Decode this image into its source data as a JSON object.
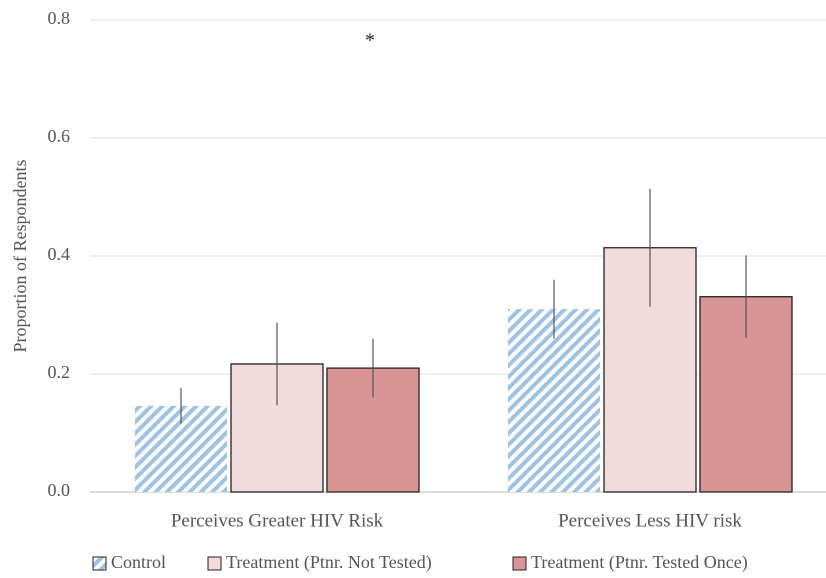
{
  "chart_data": {
    "type": "bar",
    "y_label": "Proportion of Respondents",
    "categories": [
      "Perceives Greater HIV Risk",
      "Perceives Less HIV risk"
    ],
    "series": [
      {
        "name": "Control",
        "color": "#9dc3e6",
        "pattern": "hatch",
        "values": [
          0.146,
          0.31
        ],
        "errors": [
          0.03,
          0.05
        ]
      },
      {
        "name": "Treatment (Ptnr. Not Tested)",
        "color": "#f2dcdb",
        "values": [
          0.217,
          0.414
        ],
        "errors": [
          0.07,
          0.1
        ]
      },
      {
        "name": "Treatment (Ptnr. Tested Once)",
        "color": "#d99594",
        "values": [
          0.21,
          0.331
        ],
        "errors": [
          0.05,
          0.07
        ]
      }
    ],
    "annotations": [
      "*"
    ],
    "ylim": [
      0,
      0.8
    ],
    "yticks": [
      {
        "value": 0,
        "label": "0.0"
      },
      0.2,
      0.4,
      0.6,
      0.8
    ],
    "grid": true,
    "legend": "bottom"
  }
}
